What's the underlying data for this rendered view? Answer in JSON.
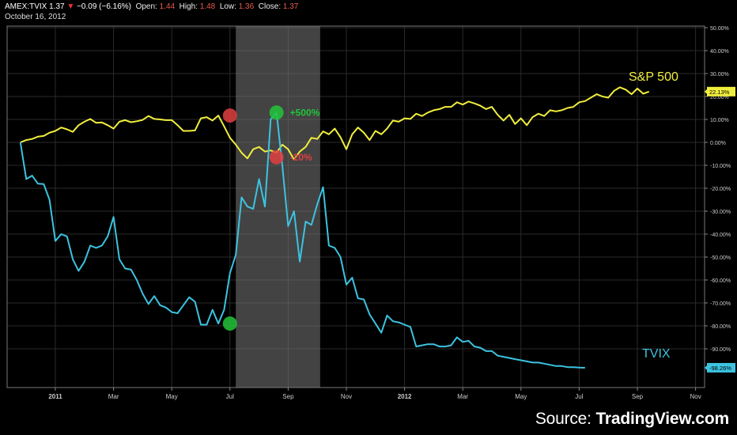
{
  "header": {
    "symbol": "AMEX:TVIX",
    "price": "1.37",
    "change": "−0.09 (−6.16%)",
    "open_label": "Open:",
    "open": "1.44",
    "high_label": "High:",
    "high": "1.48",
    "low_label": "Low:",
    "low": "1.36",
    "close_label": "Close:",
    "close": "1.37",
    "date": "October 16, 2012"
  },
  "source": {
    "prefix": "Source: ",
    "brand": "TradingView.com"
  },
  "colors": {
    "sp500": "#f0ee3c",
    "tvix": "#3cc3e0",
    "green_marker": "#22c43a",
    "red_marker": "#e04040",
    "grid": "#2a2a2a",
    "shade": "#7a7a7a"
  },
  "chart_data": {
    "type": "line",
    "x_unit": "month",
    "x_ticks": [
      {
        "label": "2011",
        "month": 0
      },
      {
        "label": "Mar",
        "month": 2
      },
      {
        "label": "May",
        "month": 4
      },
      {
        "label": "Jul",
        "month": 6
      },
      {
        "label": "Sep",
        "month": 8
      },
      {
        "label": "Nov",
        "month": 10
      },
      {
        "label": "2012",
        "month": 12
      },
      {
        "label": "Mar",
        "month": 14
      },
      {
        "label": "May",
        "month": 16
      },
      {
        "label": "Jul",
        "month": 18
      },
      {
        "label": "Sep",
        "month": 20
      },
      {
        "label": "Nov",
        "month": 22
      }
    ],
    "y_ticks": [
      "50.00%",
      "40.00%",
      "30.00%",
      "20.00%",
      "10.00%",
      "0.00%",
      "-10.00%",
      "-20.00%",
      "-30.00%",
      "-40.00%",
      "-50.00%",
      "-60.00%",
      "-70.00%",
      "-80.00%",
      "-90.00%"
    ],
    "ylim": [
      -100,
      50
    ],
    "shaded_region": [
      6.2,
      9.1
    ],
    "series": [
      {
        "name": "S&P 500",
        "last_value_label": "22.13%",
        "points": [
          [
            -1.2,
            0
          ],
          [
            -1,
            1
          ],
          [
            -0.8,
            1.5
          ],
          [
            -0.6,
            2.5
          ],
          [
            -0.4,
            2.8
          ],
          [
            -0.2,
            4.2
          ],
          [
            0,
            5
          ],
          [
            0.2,
            6.5
          ],
          [
            0.4,
            5.7
          ],
          [
            0.6,
            4.6
          ],
          [
            0.8,
            7.5
          ],
          [
            1,
            9
          ],
          [
            1.2,
            10.2
          ],
          [
            1.4,
            8.5
          ],
          [
            1.6,
            8.7
          ],
          [
            1.8,
            7.5
          ],
          [
            2,
            6
          ],
          [
            2.2,
            9
          ],
          [
            2.4,
            9.7
          ],
          [
            2.6,
            8.8
          ],
          [
            2.8,
            9.2
          ],
          [
            3,
            9.8
          ],
          [
            3.2,
            11.5
          ],
          [
            3.4,
            10.2
          ],
          [
            3.6,
            10
          ],
          [
            3.8,
            9.7
          ],
          [
            4,
            9.7
          ],
          [
            4.2,
            7.5
          ],
          [
            4.4,
            5
          ],
          [
            4.6,
            5
          ],
          [
            4.8,
            5.2
          ],
          [
            5,
            10.5
          ],
          [
            5.2,
            11
          ],
          [
            5.4,
            9.5
          ],
          [
            5.6,
            11.7
          ],
          [
            5.8,
            7
          ],
          [
            6,
            2
          ],
          [
            6.2,
            -1
          ],
          [
            6.4,
            -4.5
          ],
          [
            6.6,
            -7
          ],
          [
            6.8,
            -3
          ],
          [
            7,
            -2
          ],
          [
            7.2,
            -4
          ],
          [
            7.4,
            -3.5
          ],
          [
            7.6,
            -4.5
          ],
          [
            7.8,
            -1
          ],
          [
            8,
            -3
          ],
          [
            8.2,
            -7.5
          ],
          [
            8.4,
            -4
          ],
          [
            8.6,
            -2
          ],
          [
            8.8,
            2
          ],
          [
            9,
            1.5
          ],
          [
            9.2,
            4.8
          ],
          [
            9.4,
            3.5
          ],
          [
            9.6,
            6
          ],
          [
            9.8,
            2.2
          ],
          [
            10,
            -3
          ],
          [
            10.2,
            3.5
          ],
          [
            10.4,
            6.5
          ],
          [
            10.6,
            4.2
          ],
          [
            10.8,
            1
          ],
          [
            11,
            5
          ],
          [
            11.2,
            3.5
          ],
          [
            11.4,
            6
          ],
          [
            11.6,
            9.5
          ],
          [
            11.8,
            9
          ],
          [
            12,
            10.5
          ],
          [
            12.2,
            10.2
          ],
          [
            12.4,
            12.5
          ],
          [
            12.6,
            11.5
          ],
          [
            12.8,
            13
          ],
          [
            13,
            14
          ],
          [
            13.2,
            14.5
          ],
          [
            13.4,
            15.5
          ],
          [
            13.6,
            15.5
          ],
          [
            13.8,
            17.5
          ],
          [
            14,
            16.5
          ],
          [
            14.2,
            17.8
          ],
          [
            14.4,
            17
          ],
          [
            14.6,
            16
          ],
          [
            14.8,
            14.5
          ],
          [
            15,
            15.5
          ],
          [
            15.2,
            12
          ],
          [
            15.4,
            9.5
          ],
          [
            15.6,
            12
          ],
          [
            15.8,
            8
          ],
          [
            16,
            10.5
          ],
          [
            16.2,
            7.5
          ],
          [
            16.4,
            11
          ],
          [
            16.6,
            12.5
          ],
          [
            16.8,
            11.5
          ],
          [
            17,
            14
          ],
          [
            17.2,
            13.5
          ],
          [
            17.4,
            14
          ],
          [
            17.6,
            15
          ],
          [
            17.8,
            15.5
          ],
          [
            18,
            17.5
          ],
          [
            18.2,
            18
          ],
          [
            18.4,
            19.5
          ],
          [
            18.6,
            21
          ],
          [
            18.8,
            20
          ],
          [
            19,
            19.5
          ],
          [
            19.2,
            22.5
          ],
          [
            19.4,
            24
          ],
          [
            19.6,
            23
          ],
          [
            19.8,
            21
          ],
          [
            20,
            23.5
          ],
          [
            20.2,
            21.2
          ],
          [
            20.4,
            22.13
          ]
        ]
      },
      {
        "name": "TVIX",
        "last_value_label": "-98.26%",
        "points": [
          [
            -1.2,
            0
          ],
          [
            -1,
            -16
          ],
          [
            -0.8,
            -14.5
          ],
          [
            -0.6,
            -18
          ],
          [
            -0.4,
            -18.2
          ],
          [
            -0.2,
            -25
          ],
          [
            0,
            -43
          ],
          [
            0.2,
            -40
          ],
          [
            0.4,
            -41
          ],
          [
            0.6,
            -51
          ],
          [
            0.8,
            -56
          ],
          [
            1,
            -52
          ],
          [
            1.2,
            -45
          ],
          [
            1.4,
            -46
          ],
          [
            1.6,
            -45
          ],
          [
            1.8,
            -41
          ],
          [
            2,
            -32.5
          ],
          [
            2.2,
            -51
          ],
          [
            2.4,
            -55
          ],
          [
            2.6,
            -55.5
          ],
          [
            2.8,
            -60
          ],
          [
            3,
            -66
          ],
          [
            3.2,
            -70.5
          ],
          [
            3.4,
            -67
          ],
          [
            3.6,
            -71
          ],
          [
            3.8,
            -72
          ],
          [
            4,
            -74
          ],
          [
            4.2,
            -74.5
          ],
          [
            4.4,
            -71
          ],
          [
            4.6,
            -67.5
          ],
          [
            4.8,
            -69.5
          ],
          [
            5,
            -79.5
          ],
          [
            5.2,
            -79.5
          ],
          [
            5.4,
            -73
          ],
          [
            5.6,
            -79
          ],
          [
            5.8,
            -73
          ],
          [
            6,
            -57
          ],
          [
            6.2,
            -49
          ],
          [
            6.4,
            -24
          ],
          [
            6.6,
            -28
          ],
          [
            6.8,
            -29
          ],
          [
            7,
            -16
          ],
          [
            7.2,
            -28
          ],
          [
            7.4,
            10
          ],
          [
            7.6,
            13
          ],
          [
            7.8,
            -10
          ],
          [
            8,
            -36.5
          ],
          [
            8.2,
            -30
          ],
          [
            8.4,
            -52
          ],
          [
            8.6,
            -34.5
          ],
          [
            8.8,
            -36
          ],
          [
            9,
            -27
          ],
          [
            9.2,
            -19.5
          ],
          [
            9.4,
            -45
          ],
          [
            9.6,
            -46
          ],
          [
            9.8,
            -50
          ],
          [
            10,
            -62
          ],
          [
            10.2,
            -59
          ],
          [
            10.4,
            -68
          ],
          [
            10.6,
            -68.5
          ],
          [
            10.8,
            -75
          ],
          [
            11,
            -79
          ],
          [
            11.2,
            -83
          ],
          [
            11.4,
            -75.5
          ],
          [
            11.6,
            -78
          ],
          [
            11.8,
            -78.5
          ],
          [
            12,
            -79.5
          ],
          [
            12.2,
            -80.5
          ],
          [
            12.4,
            -89
          ],
          [
            12.6,
            -88.5
          ],
          [
            12.8,
            -88
          ],
          [
            13,
            -88
          ],
          [
            13.2,
            -89
          ],
          [
            13.4,
            -89
          ],
          [
            13.6,
            -88.5
          ],
          [
            13.8,
            -85
          ],
          [
            14,
            -87
          ],
          [
            14.2,
            -86.5
          ],
          [
            14.4,
            -89
          ],
          [
            14.6,
            -89.5
          ],
          [
            14.8,
            -91
          ],
          [
            15,
            -91
          ],
          [
            15.2,
            -93
          ],
          [
            15.4,
            -93.5
          ],
          [
            15.6,
            -94
          ],
          [
            15.8,
            -94.5
          ],
          [
            16,
            -95
          ],
          [
            16.2,
            -95.5
          ],
          [
            16.4,
            -96
          ],
          [
            16.6,
            -96
          ],
          [
            16.8,
            -96.5
          ],
          [
            17,
            -97
          ],
          [
            17.2,
            -97.5
          ],
          [
            17.4,
            -97.5
          ],
          [
            17.6,
            -98
          ],
          [
            17.8,
            -98
          ],
          [
            18,
            -98.2
          ],
          [
            18.2,
            -98.26
          ]
        ]
      }
    ],
    "markers": [
      {
        "month": 6.0,
        "value": 11.7,
        "color": "red"
      },
      {
        "month": 7.6,
        "value": 13,
        "color": "green",
        "label": "+500%"
      },
      {
        "month": 7.6,
        "value": -6.5,
        "color": "red",
        "label": "-20%"
      },
      {
        "month": 6.0,
        "value": -79,
        "color": "green"
      }
    ]
  }
}
